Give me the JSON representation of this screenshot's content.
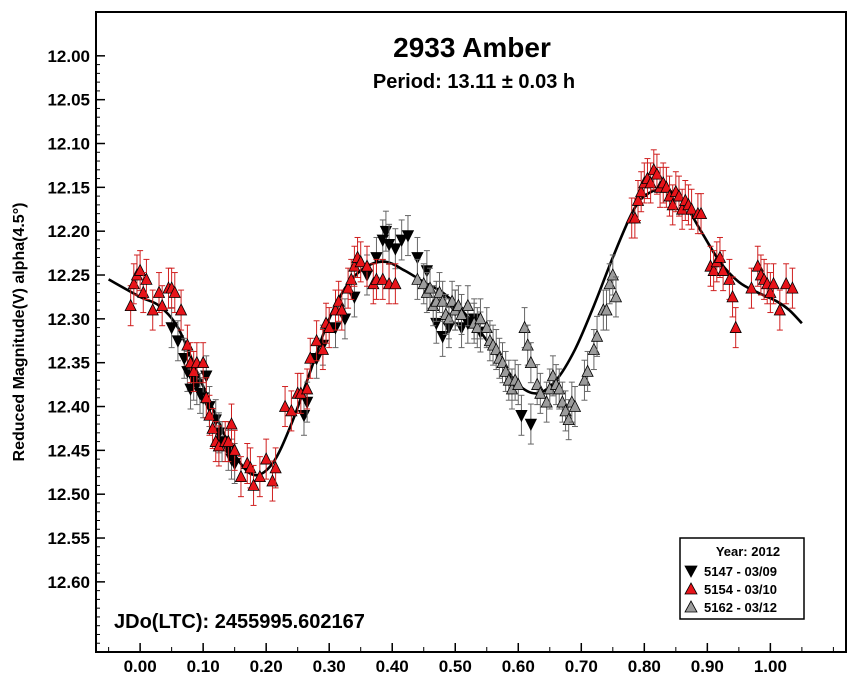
{
  "chart_data": {
    "type": "scatter",
    "title": "2933 Amber",
    "subtitle": "Period: 13.11 ± 0.03 h",
    "ylabel": "Reduced Magnitude(V) alpha(4.5°)",
    "xlabel": "",
    "xlim": [
      -0.07,
      1.12
    ],
    "ylim": [
      12.68,
      11.95
    ],
    "x_ticks": [
      "0.00",
      "0.10",
      "0.20",
      "0.30",
      "0.40",
      "0.50",
      "0.60",
      "0.70",
      "0.80",
      "0.90",
      "1.00"
    ],
    "y_ticks": [
      "12.00",
      "12.05",
      "12.10",
      "12.15",
      "12.20",
      "12.25",
      "12.30",
      "12.35",
      "12.40",
      "12.45",
      "12.50",
      "12.55",
      "12.60"
    ],
    "annotation": "JDo(LTC): 2455995.602167",
    "legend": {
      "title": "Year: 2012",
      "position": "bottom-right",
      "items": [
        "5147 - 03/09",
        "5154 - 03/10",
        "5162 - 03/12"
      ]
    },
    "colors": {
      "5147": "#000000",
      "5154": "#e8141a",
      "5162": "#9c9c9c",
      "curve": "#000000",
      "errorbar": "#d02020"
    },
    "fit_curve": [
      [
        -0.05,
        12.255
      ],
      [
        0.0,
        12.275
      ],
      [
        0.03,
        12.285
      ],
      [
        0.06,
        12.31
      ],
      [
        0.09,
        12.36
      ],
      [
        0.12,
        12.41
      ],
      [
        0.15,
        12.455
      ],
      [
        0.18,
        12.478
      ],
      [
        0.21,
        12.465
      ],
      [
        0.24,
        12.42
      ],
      [
        0.27,
        12.36
      ],
      [
        0.3,
        12.3
      ],
      [
        0.33,
        12.26
      ],
      [
        0.36,
        12.24
      ],
      [
        0.39,
        12.235
      ],
      [
        0.42,
        12.245
      ],
      [
        0.45,
        12.258
      ],
      [
        0.48,
        12.27
      ],
      [
        0.51,
        12.29
      ],
      [
        0.54,
        12.315
      ],
      [
        0.57,
        12.345
      ],
      [
        0.6,
        12.375
      ],
      [
        0.63,
        12.385
      ],
      [
        0.66,
        12.37
      ],
      [
        0.69,
        12.335
      ],
      [
        0.72,
        12.285
      ],
      [
        0.75,
        12.23
      ],
      [
        0.78,
        12.18
      ],
      [
        0.8,
        12.16
      ],
      [
        0.83,
        12.152
      ],
      [
        0.86,
        12.165
      ],
      [
        0.89,
        12.2
      ],
      [
        0.92,
        12.235
      ],
      [
        0.95,
        12.258
      ],
      [
        0.98,
        12.27
      ],
      [
        1.01,
        12.28
      ],
      [
        1.03,
        12.29
      ],
      [
        1.05,
        12.305
      ]
    ],
    "series": [
      {
        "name": "5147 - 03/09",
        "marker": "triangle-down",
        "points": [
          [
            0.05,
            12.31
          ],
          [
            0.06,
            12.325
          ],
          [
            0.07,
            12.345
          ],
          [
            0.075,
            12.36
          ],
          [
            0.08,
            12.38
          ],
          [
            0.085,
            12.37
          ],
          [
            0.09,
            12.375
          ],
          [
            0.095,
            12.385
          ],
          [
            0.1,
            12.39
          ],
          [
            0.105,
            12.365
          ],
          [
            0.11,
            12.4
          ],
          [
            0.12,
            12.415
          ],
          [
            0.125,
            12.43
          ],
          [
            0.13,
            12.44
          ],
          [
            0.14,
            12.45
          ],
          [
            0.145,
            12.46
          ],
          [
            0.15,
            12.465
          ],
          [
            0.26,
            12.41
          ],
          [
            0.265,
            12.395
          ],
          [
            0.28,
            12.345
          ],
          [
            0.29,
            12.33
          ],
          [
            0.31,
            12.31
          ],
          [
            0.325,
            12.3
          ],
          [
            0.34,
            12.275
          ],
          [
            0.36,
            12.25
          ],
          [
            0.375,
            12.23
          ],
          [
            0.385,
            12.21
          ],
          [
            0.39,
            12.2
          ],
          [
            0.395,
            12.215
          ],
          [
            0.405,
            12.22
          ],
          [
            0.415,
            12.21
          ],
          [
            0.425,
            12.205
          ],
          [
            0.44,
            12.23
          ],
          [
            0.455,
            12.245
          ],
          [
            0.47,
            12.305
          ],
          [
            0.48,
            12.32
          ],
          [
            0.49,
            12.31
          ],
          [
            0.5,
            12.29
          ],
          [
            0.51,
            12.31
          ],
          [
            0.52,
            12.305
          ],
          [
            0.53,
            12.3
          ],
          [
            0.54,
            12.315
          ],
          [
            0.605,
            12.41
          ],
          [
            0.62,
            12.42
          ]
        ]
      },
      {
        "name": "5154 - 03/10",
        "marker": "triangle-up",
        "points": [
          [
            -0.015,
            12.285
          ],
          [
            -0.01,
            12.26
          ],
          [
            -0.005,
            12.25
          ],
          [
            0.0,
            12.245
          ],
          [
            0.005,
            12.27
          ],
          [
            0.01,
            12.255
          ],
          [
            0.02,
            12.29
          ],
          [
            0.03,
            12.27
          ],
          [
            0.035,
            12.285
          ],
          [
            0.045,
            12.265
          ],
          [
            0.05,
            12.265
          ],
          [
            0.055,
            12.27
          ],
          [
            0.065,
            12.29
          ],
          [
            0.075,
            12.33
          ],
          [
            0.08,
            12.35
          ],
          [
            0.085,
            12.36
          ],
          [
            0.09,
            12.35
          ],
          [
            0.1,
            12.35
          ],
          [
            0.105,
            12.39
          ],
          [
            0.11,
            12.41
          ],
          [
            0.115,
            12.425
          ],
          [
            0.12,
            12.44
          ],
          [
            0.125,
            12.445
          ],
          [
            0.135,
            12.44
          ],
          [
            0.14,
            12.44
          ],
          [
            0.145,
            12.42
          ],
          [
            0.15,
            12.45
          ],
          [
            0.16,
            12.48
          ],
          [
            0.17,
            12.465
          ],
          [
            0.175,
            12.47
          ],
          [
            0.18,
            12.49
          ],
          [
            0.19,
            12.48
          ],
          [
            0.2,
            12.46
          ],
          [
            0.21,
            12.485
          ],
          [
            0.215,
            12.47
          ],
          [
            0.23,
            12.4
          ],
          [
            0.24,
            12.405
          ],
          [
            0.25,
            12.385
          ],
          [
            0.255,
            12.385
          ],
          [
            0.265,
            12.38
          ],
          [
            0.27,
            12.345
          ],
          [
            0.28,
            12.325
          ],
          [
            0.29,
            12.335
          ],
          [
            0.295,
            12.305
          ],
          [
            0.3,
            12.31
          ],
          [
            0.31,
            12.29
          ],
          [
            0.315,
            12.28
          ],
          [
            0.32,
            12.29
          ],
          [
            0.33,
            12.265
          ],
          [
            0.335,
            12.255
          ],
          [
            0.34,
            12.24
          ],
          [
            0.345,
            12.23
          ],
          [
            0.35,
            12.235
          ],
          [
            0.36,
            12.24
          ],
          [
            0.37,
            12.26
          ],
          [
            0.375,
            12.255
          ],
          [
            0.385,
            12.255
          ],
          [
            0.395,
            12.26
          ],
          [
            0.405,
            12.26
          ],
          [
            0.78,
            12.185
          ],
          [
            0.785,
            12.185
          ],
          [
            0.79,
            12.165
          ],
          [
            0.795,
            12.155
          ],
          [
            0.8,
            12.145
          ],
          [
            0.805,
            12.14
          ],
          [
            0.81,
            12.145
          ],
          [
            0.815,
            12.13
          ],
          [
            0.82,
            12.135
          ],
          [
            0.825,
            12.15
          ],
          [
            0.83,
            12.145
          ],
          [
            0.835,
            12.15
          ],
          [
            0.84,
            12.16
          ],
          [
            0.845,
            12.17
          ],
          [
            0.85,
            12.155
          ],
          [
            0.855,
            12.16
          ],
          [
            0.86,
            12.175
          ],
          [
            0.865,
            12.165
          ],
          [
            0.87,
            12.17
          ],
          [
            0.875,
            12.175
          ],
          [
            0.885,
            12.18
          ],
          [
            0.89,
            12.18
          ],
          [
            0.905,
            12.24
          ],
          [
            0.91,
            12.245
          ],
          [
            0.915,
            12.235
          ],
          [
            0.92,
            12.23
          ],
          [
            0.925,
            12.245
          ],
          [
            0.935,
            12.255
          ],
          [
            0.94,
            12.275
          ],
          [
            0.945,
            12.31
          ],
          [
            0.97,
            12.265
          ],
          [
            0.98,
            12.24
          ],
          [
            0.985,
            12.25
          ],
          [
            0.99,
            12.255
          ],
          [
            0.995,
            12.26
          ],
          [
            1.0,
            12.27
          ],
          [
            1.005,
            12.26
          ],
          [
            1.015,
            12.29
          ],
          [
            1.025,
            12.26
          ],
          [
            1.035,
            12.265
          ]
        ]
      },
      {
        "name": "5162 - 03/12",
        "marker": "triangle-up",
        "points": [
          [
            0.44,
            12.255
          ],
          [
            0.45,
            12.26
          ],
          [
            0.455,
            12.27
          ],
          [
            0.46,
            12.265
          ],
          [
            0.465,
            12.285
          ],
          [
            0.47,
            12.28
          ],
          [
            0.475,
            12.27
          ],
          [
            0.48,
            12.28
          ],
          [
            0.485,
            12.295
          ],
          [
            0.49,
            12.3
          ],
          [
            0.495,
            12.28
          ],
          [
            0.5,
            12.29
          ],
          [
            0.505,
            12.285
          ],
          [
            0.51,
            12.295
          ],
          [
            0.52,
            12.285
          ],
          [
            0.53,
            12.305
          ],
          [
            0.535,
            12.31
          ],
          [
            0.54,
            12.3
          ],
          [
            0.55,
            12.31
          ],
          [
            0.555,
            12.325
          ],
          [
            0.56,
            12.33
          ],
          [
            0.565,
            12.335
          ],
          [
            0.57,
            12.345
          ],
          [
            0.575,
            12.35
          ],
          [
            0.58,
            12.36
          ],
          [
            0.585,
            12.37
          ],
          [
            0.59,
            12.38
          ],
          [
            0.595,
            12.37
          ],
          [
            0.6,
            12.375
          ],
          [
            0.61,
            12.31
          ],
          [
            0.615,
            12.33
          ],
          [
            0.62,
            12.35
          ],
          [
            0.63,
            12.375
          ],
          [
            0.635,
            12.385
          ],
          [
            0.645,
            12.395
          ],
          [
            0.65,
            12.38
          ],
          [
            0.655,
            12.365
          ],
          [
            0.66,
            12.375
          ],
          [
            0.665,
            12.38
          ],
          [
            0.67,
            12.395
          ],
          [
            0.675,
            12.405
          ],
          [
            0.68,
            12.415
          ],
          [
            0.685,
            12.395
          ],
          [
            0.69,
            12.4
          ],
          [
            0.705,
            12.37
          ],
          [
            0.71,
            12.36
          ],
          [
            0.72,
            12.335
          ],
          [
            0.725,
            12.32
          ],
          [
            0.735,
            12.29
          ],
          [
            0.74,
            12.29
          ],
          [
            0.745,
            12.26
          ],
          [
            0.75,
            12.25
          ],
          [
            0.755,
            12.275
          ]
        ]
      }
    ]
  }
}
